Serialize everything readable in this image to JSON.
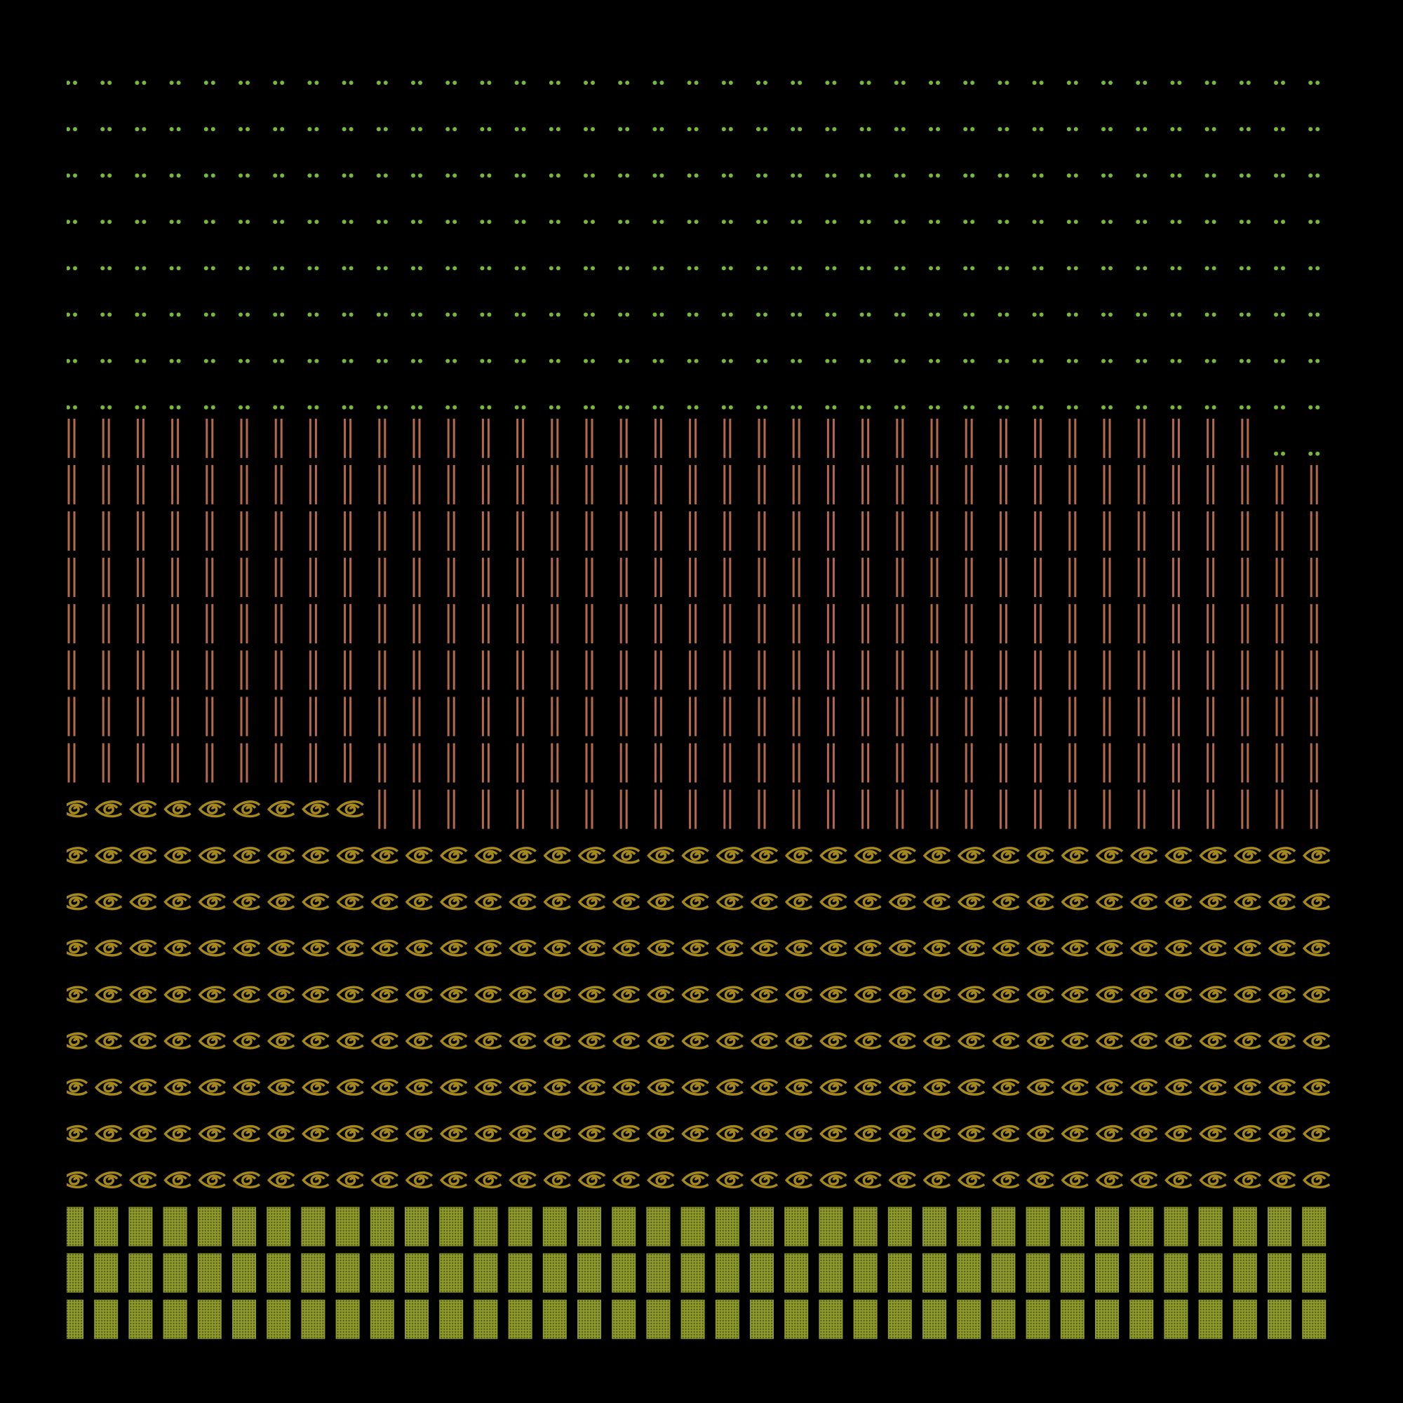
{
  "chart_data": {
    "type": "waffle",
    "rows": 28,
    "columns": 37,
    "series": [
      {
        "color": "#8e9b2a",
        "value": 111
      },
      {
        "color": "#a6891d",
        "value": 305
      },
      {
        "color": "#b5694a",
        "value": 322
      },
      {
        "color": "#78b83a",
        "value": 298
      }
    ]
  }
}
